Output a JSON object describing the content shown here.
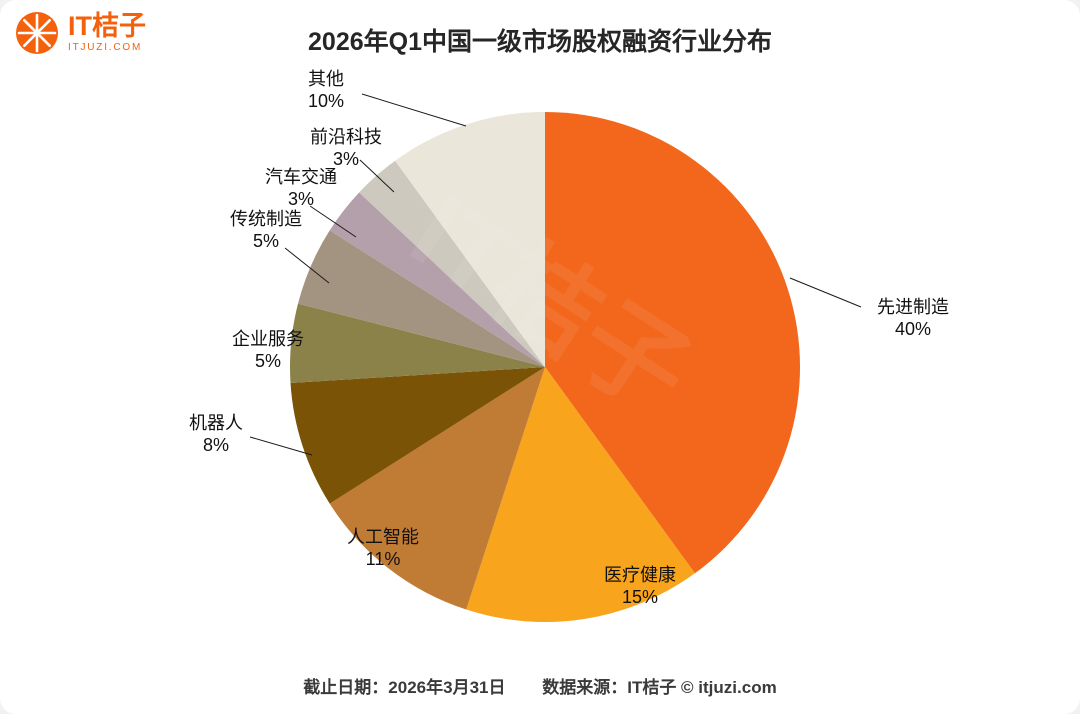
{
  "brand": {
    "name": "IT桔子",
    "domain": "ITJUZI.COM",
    "color": "#F4610C"
  },
  "title": "2026年Q1中国一级市场股权融资行业分布",
  "watermark": "IT桔子",
  "footer": {
    "deadline": "截止日期：2026年3月31日",
    "source": "数据来源：IT桔子 © itjuzi.com"
  },
  "chart_data": {
    "type": "pie",
    "title": "2026年Q1中国一级市场股权融资行业分布",
    "direction": "clockwise",
    "start_angle_deg": 0,
    "total": 100,
    "slices": [
      {
        "label": "先进制造",
        "value": 40,
        "pct": "40%",
        "color": "#F2671C"
      },
      {
        "label": "医疗健康",
        "value": 15,
        "pct": "15%",
        "color": "#F8A41D"
      },
      {
        "label": "人工智能",
        "value": 11,
        "pct": "11%",
        "color": "#C07B34"
      },
      {
        "label": "机器人",
        "value": 8,
        "pct": "8%",
        "color": "#7A5306"
      },
      {
        "label": "企业服务",
        "value": 5,
        "pct": "5%",
        "color": "#8B8249"
      },
      {
        "label": "传统制造",
        "value": 5,
        "pct": "5%",
        "color": "#A39481"
      },
      {
        "label": "汽车交通",
        "value": 3,
        "pct": "3%",
        "color": "#B4A0AB"
      },
      {
        "label": "前沿科技",
        "value": 3,
        "pct": "3%",
        "color": "#CDC9BE"
      },
      {
        "label": "其他",
        "value": 10,
        "pct": "10%",
        "color": "#EAE6DA"
      }
    ]
  }
}
